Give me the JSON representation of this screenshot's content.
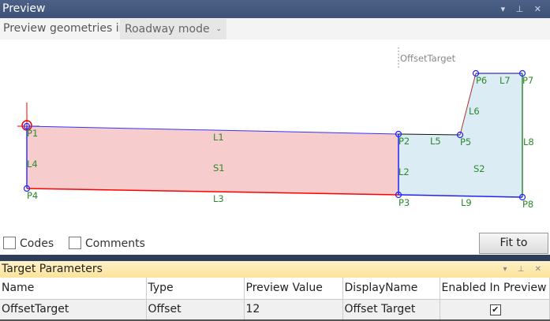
{
  "preview": {
    "title": "Preview",
    "window_controls": "▾ ⊥ ✕",
    "mode_label": "Preview geometries in",
    "mode_value": "Roadway mode",
    "target_label": "OffsetTarget",
    "points": [
      "P1",
      "P2",
      "P3",
      "P4",
      "P5",
      "P6",
      "P7",
      "P8"
    ],
    "lines": [
      "L1",
      "L2",
      "L3",
      "L4",
      "L5",
      "L6",
      "L7",
      "L8",
      "L9"
    ],
    "shapes": [
      "S1",
      "S2"
    ],
    "codes_label": "Codes",
    "comments_label": "Comments",
    "fit_button": "Fit to Screen"
  },
  "target_parameters": {
    "title": "Target Parameters",
    "window_controls": "▾ ⊥ ✕",
    "columns": [
      "Name",
      "Type",
      "Preview Value",
      "DisplayName",
      "Enabled In Preview"
    ],
    "rows": [
      {
        "name": "OffsetTarget",
        "type": "Offset",
        "preview_value": "12",
        "display_name": "Offset Target",
        "enabled": true
      }
    ]
  }
}
